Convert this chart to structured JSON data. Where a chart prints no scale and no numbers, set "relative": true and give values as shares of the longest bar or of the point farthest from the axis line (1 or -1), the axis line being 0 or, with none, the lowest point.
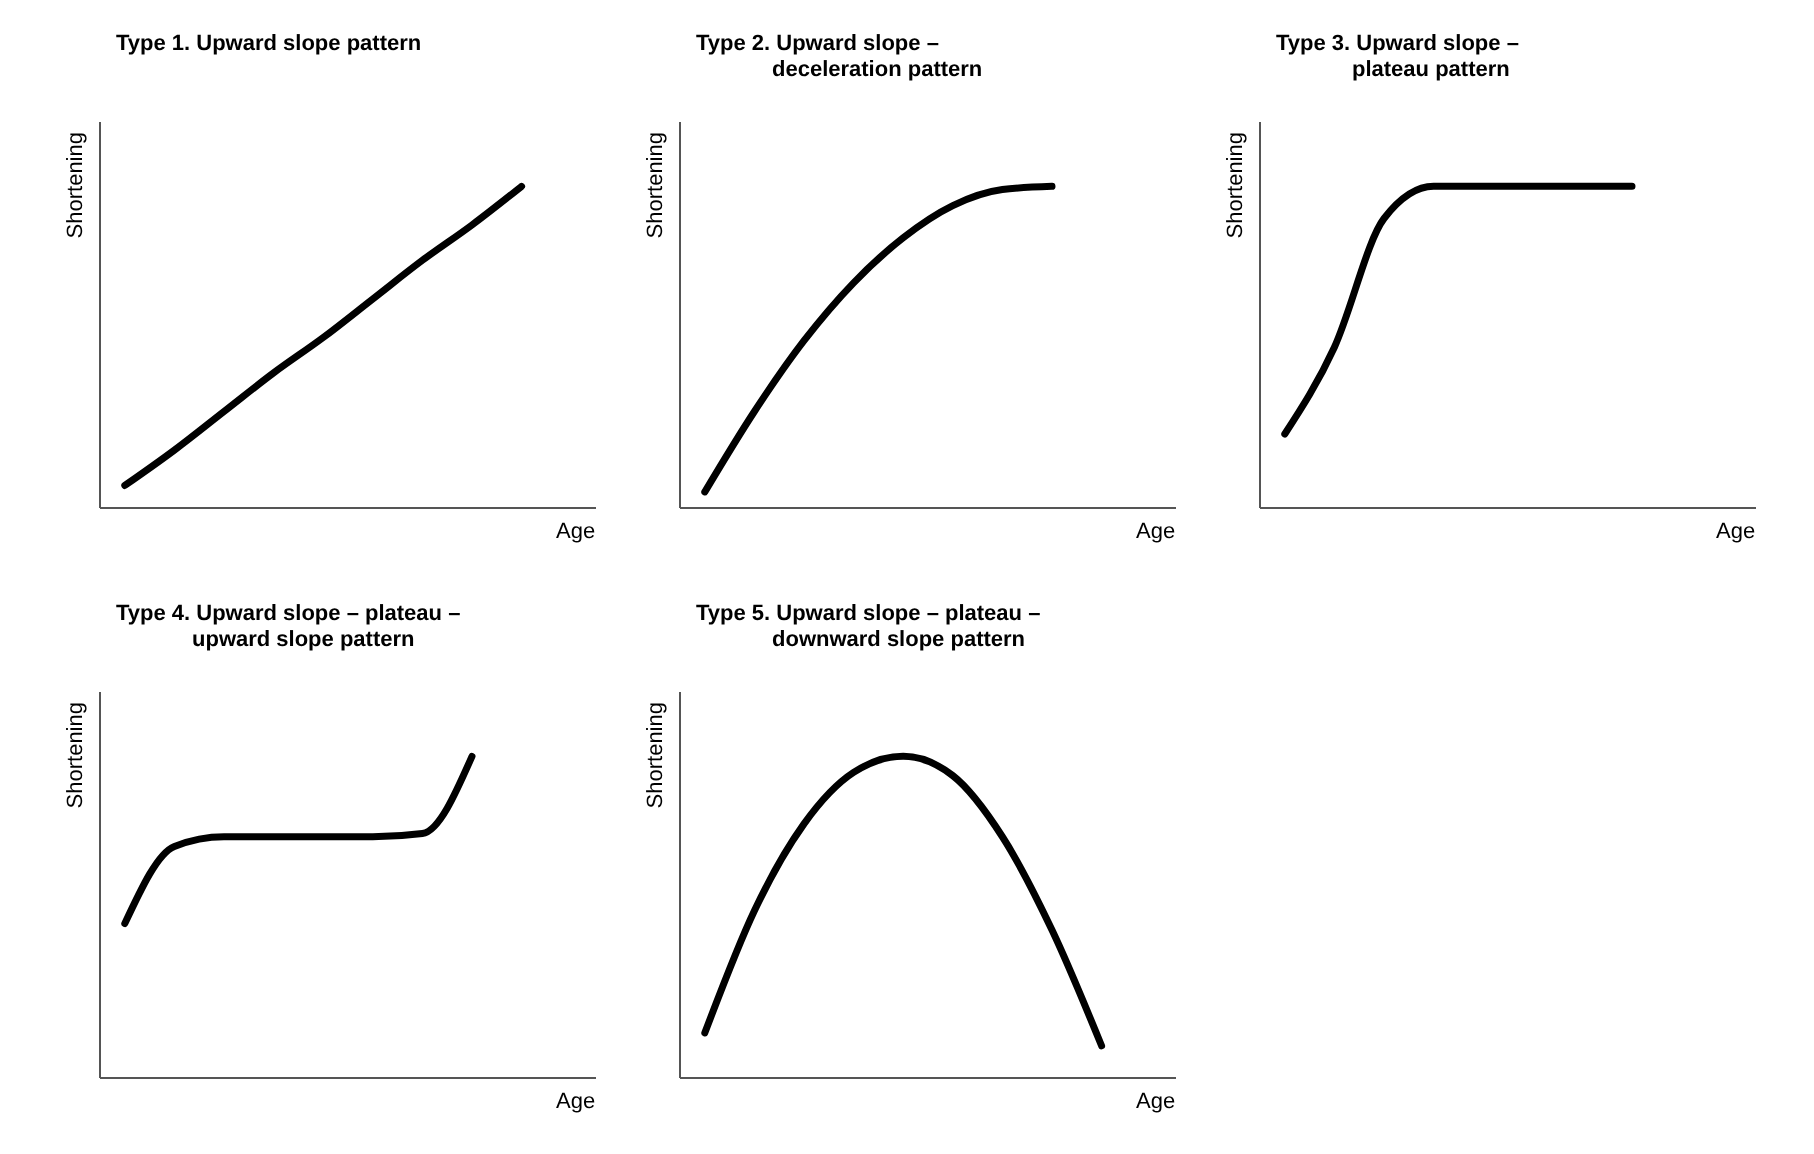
{
  "chart_data": [
    {
      "type": "line",
      "title": "Type 1. Upward slope pattern",
      "xlabel": "Age",
      "ylabel": "Shortening",
      "relative": true,
      "tick_labels": false,
      "categories": [
        null,
        null,
        null,
        null,
        null,
        null,
        null,
        null,
        null,
        null
      ],
      "series": [
        {
          "color": "#000000",
          "values": [
            0.07,
            0.18,
            0.3,
            0.42,
            0.53,
            0.65,
            0.77,
            0.88,
            1.0,
            null
          ]
        }
      ]
    },
    {
      "type": "line",
      "title": "Type 2.  Upward slope –\ndeceleration pattern",
      "xlabel": "Age",
      "ylabel": "Shortening",
      "relative": true,
      "tick_labels": false,
      "categories": [
        null,
        null,
        null,
        null,
        null,
        null,
        null,
        null,
        null,
        null
      ],
      "series": [
        {
          "color": "#000000",
          "values": [
            0.05,
            0.3,
            0.52,
            0.7,
            0.84,
            0.94,
            0.99,
            1.0,
            null,
            null
          ]
        }
      ]
    },
    {
      "type": "line",
      "title": "Type 3.  Upward slope –\nplateau pattern",
      "xlabel": "Age",
      "ylabel": "Shortening",
      "relative": true,
      "tick_labels": false,
      "categories": [
        null,
        null,
        null,
        null,
        null,
        null,
        null,
        null,
        null,
        null
      ],
      "series": [
        {
          "color": "#000000",
          "values": [
            0.23,
            0.5,
            0.9,
            1.0,
            1.0,
            1.0,
            1.0,
            1.0,
            null,
            null
          ]
        }
      ]
    },
    {
      "type": "line",
      "title": "Type 4.  Upward slope – plateau –\nupward slope pattern",
      "xlabel": "Age",
      "ylabel": "Shortening",
      "relative": true,
      "tick_labels": false,
      "categories": [
        null,
        null,
        null,
        null,
        null,
        null,
        null,
        null,
        null,
        null
      ],
      "series": [
        {
          "color": "#000000",
          "values": [
            0.48,
            0.72,
            0.75,
            0.75,
            0.75,
            0.75,
            0.76,
            1.0,
            null,
            null
          ]
        }
      ]
    },
    {
      "type": "line",
      "title": "Type 5.  Upward slope – plateau –\ndownward slope pattern",
      "xlabel": "Age",
      "ylabel": "Shortening",
      "relative": true,
      "tick_labels": false,
      "categories": [
        null,
        null,
        null,
        null,
        null,
        null,
        null,
        null,
        null,
        null
      ],
      "series": [
        {
          "color": "#000000",
          "values": [
            0.14,
            0.52,
            0.79,
            0.95,
            1.0,
            0.94,
            0.75,
            0.46,
            0.1,
            null
          ]
        }
      ]
    }
  ]
}
